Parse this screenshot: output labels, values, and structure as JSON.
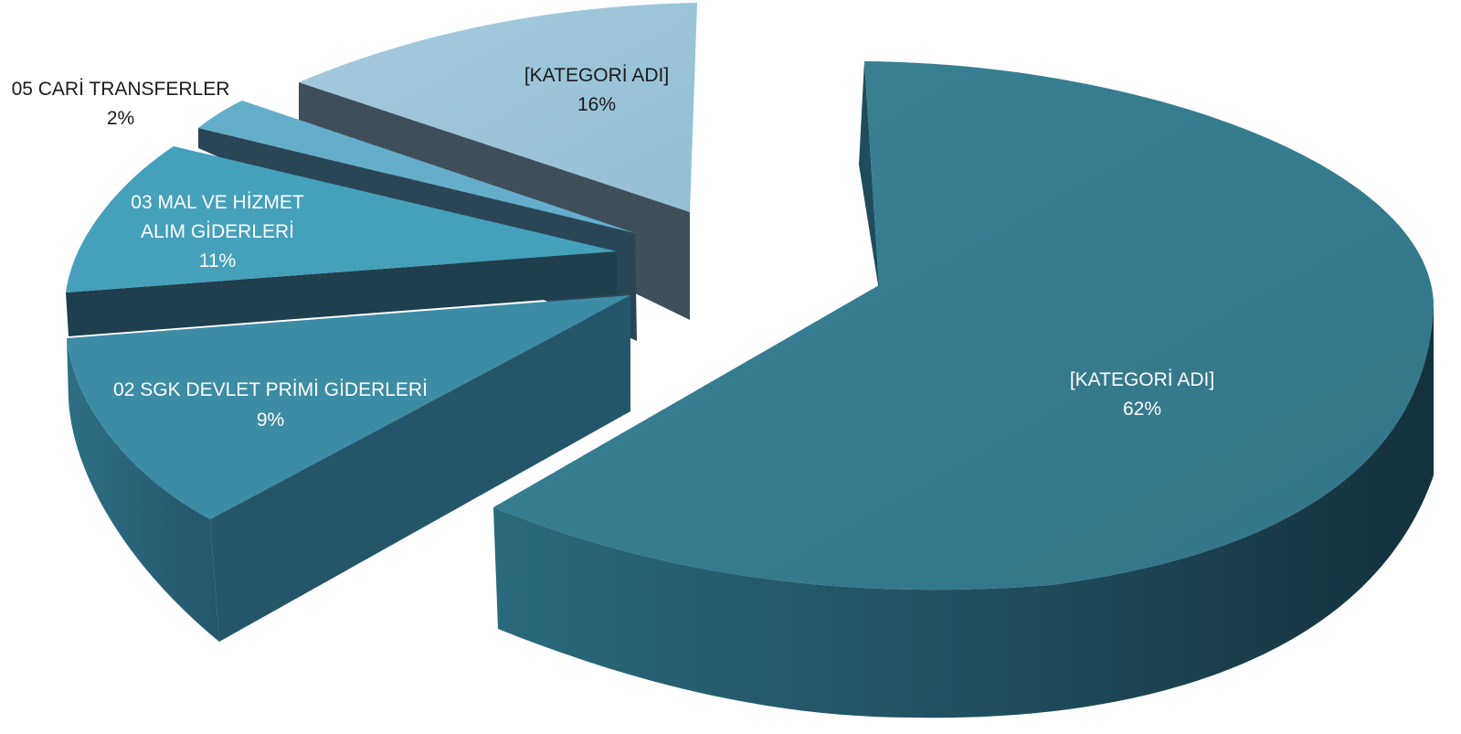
{
  "chart_data": {
    "type": "pie",
    "style": "3d-exploded",
    "slices": [
      {
        "category": "[KATEGORİ ADI]",
        "percent": 62,
        "value_label": "62%",
        "color": "#357B8F"
      },
      {
        "category": "02 SGK DEVLET PRİMİ GİDERLERİ",
        "percent": 9,
        "value_label": "9%",
        "color": "#3C8CA6"
      },
      {
        "category": "03 MAL VE HİZMET ALIM GİDERLERİ",
        "category_lines": [
          "03 MAL VE HİZMET",
          "ALIM GİDERLERİ"
        ],
        "percent": 11,
        "value_label": "11%",
        "color": "#45A0BC"
      },
      {
        "category": "05 CARİ TRANSFERLER",
        "percent": 2,
        "value_label": "2%",
        "color": "#64AECB"
      },
      {
        "category": "[KATEGORİ ADI]",
        "percent": 16,
        "value_label": "16%",
        "color": "#9DC5D8"
      }
    ],
    "data_label_colors": {
      "on_slice": "#ffffff",
      "outside": "#1a1a1a",
      "light_slice": "#1a1a1a"
    }
  }
}
